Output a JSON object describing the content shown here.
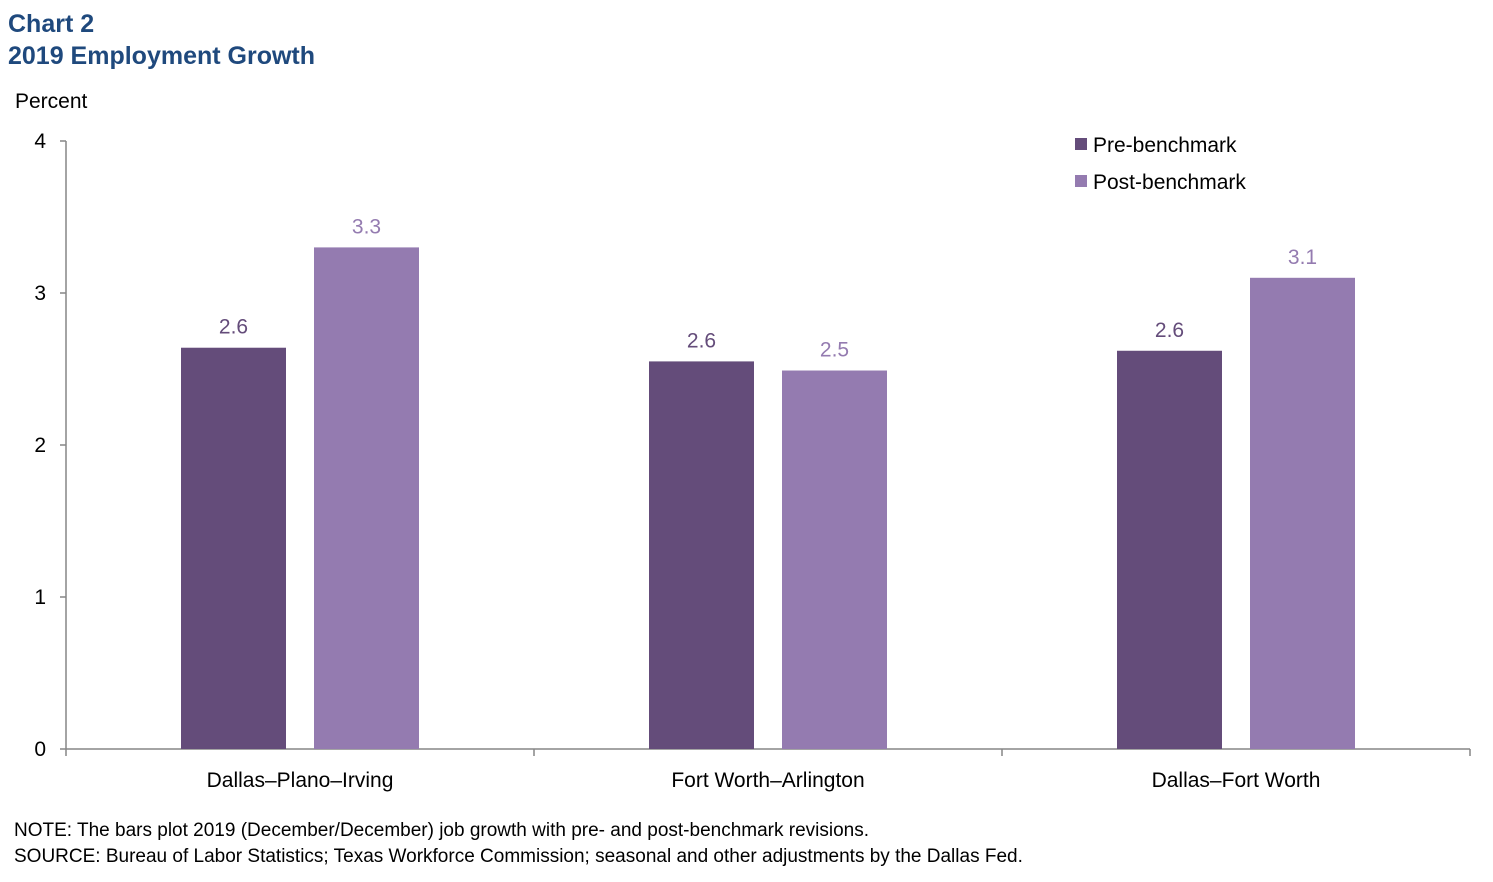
{
  "header": {
    "title": "Chart 2",
    "subtitle": "2019 Employment Growth"
  },
  "chart_data": {
    "type": "bar",
    "categories": [
      "Dallas–Plano–Irving",
      "Fort Worth–Arlington",
      "Dallas–Fort Worth"
    ],
    "series": [
      {
        "name": "Pre-benchmark",
        "values": [
          2.64,
          2.55,
          2.62
        ],
        "labels": [
          "2.6",
          "2.6",
          "2.6"
        ],
        "color": "#644C7A"
      },
      {
        "name": "Post-benchmark",
        "values": [
          3.3,
          2.49,
          3.1
        ],
        "labels": [
          "3.3",
          "2.5",
          "3.1"
        ],
        "color": "#947BB0"
      }
    ],
    "ylabel": "Percent",
    "ylim": [
      0,
      4
    ],
    "yticks": [
      0,
      1,
      2,
      3,
      4
    ],
    "grid": false,
    "legend_position": "top-right"
  },
  "footer": {
    "note": "NOTE: The bars plot 2019 (December/December) job growth with pre- and post-benchmark revisions.",
    "source": "SOURCE: Bureau of Labor Statistics; Texas Workforce Commission; seasonal and other adjustments by the Dallas Fed."
  }
}
